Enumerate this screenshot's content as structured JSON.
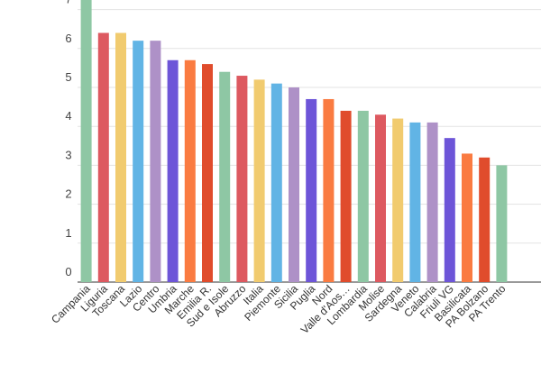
{
  "chart_data": {
    "type": "bar",
    "title": "",
    "xlabel": "",
    "ylabel": "",
    "ylim": [
      0,
      7.3
    ],
    "yticks": [
      0,
      1,
      2,
      3,
      4,
      5,
      6,
      7
    ],
    "grid": true,
    "legend": "none",
    "categories": [
      "Campania",
      "Liguria",
      "Toscana",
      "Lazio",
      "Centro",
      "Umbria",
      "Marche",
      "Emilia R.",
      "Sud e Isole",
      "Abruzzo",
      "Italia",
      "Piemonte",
      "Sicilia",
      "Puglia",
      "Nord",
      "Valle d'Aos…",
      "Lombardia",
      "Molise",
      "Sardegna",
      "Veneto",
      "Calabria",
      "Friuli VG",
      "Basilicata",
      "PA Bolzano",
      "PA Trento"
    ],
    "values": [
      7.4,
      6.4,
      6.4,
      6.2,
      6.2,
      5.7,
      5.7,
      5.6,
      5.4,
      5.3,
      5.2,
      5.1,
      5.0,
      4.7,
      4.7,
      4.4,
      4.4,
      4.3,
      4.2,
      4.1,
      4.1,
      3.7,
      3.3,
      3.2,
      3.0
    ],
    "colors": [
      "#8ec7a4",
      "#dd5960",
      "#f1cb6f",
      "#61b4e5",
      "#ae91c7",
      "#6d55d8",
      "#fa7b41",
      "#e04c2c",
      "#8ec7a4",
      "#dd5960",
      "#f1cb6f",
      "#61b4e5",
      "#ae91c7",
      "#6d55d8",
      "#fa7b41",
      "#e04c2c",
      "#8ec7a4",
      "#dd5960",
      "#f1cb6f",
      "#61b4e5",
      "#ae91c7",
      "#6d55d8",
      "#fa7b41",
      "#e04c2c",
      "#8ec7a4"
    ]
  }
}
